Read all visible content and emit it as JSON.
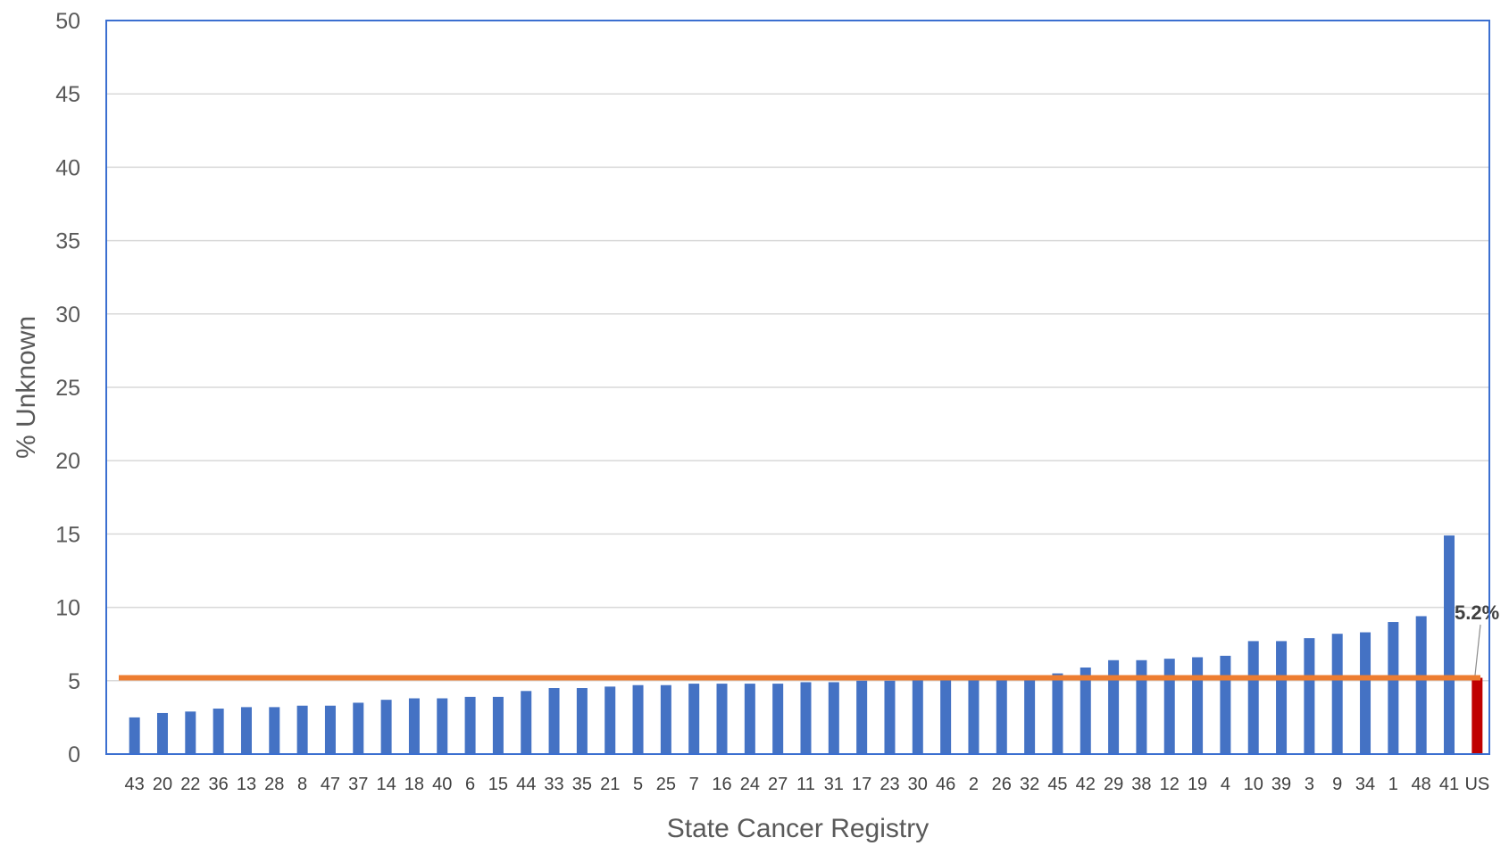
{
  "chart_data": {
    "type": "bar",
    "xlabel": "State Cancer Registry",
    "ylabel": "% Unknown",
    "ylim": [
      0,
      50
    ],
    "yticks": [
      0,
      5,
      10,
      15,
      20,
      25,
      30,
      35,
      40,
      45,
      50
    ],
    "grid": true,
    "categories": [
      "43",
      "20",
      "22",
      "36",
      "13",
      "28",
      "8",
      "47",
      "37",
      "14",
      "18",
      "40",
      "6",
      "15",
      "44",
      "33",
      "35",
      "21",
      "5",
      "25",
      "7",
      "16",
      "24",
      "27",
      "11",
      "31",
      "17",
      "23",
      "30",
      "46",
      "2",
      "26",
      "32",
      "45",
      "42",
      "29",
      "38",
      "12",
      "19",
      "4",
      "10",
      "39",
      "3",
      "9",
      "34",
      "1",
      "48",
      "41",
      "US"
    ],
    "values": [
      2.5,
      2.8,
      2.9,
      3.1,
      3.2,
      3.2,
      3.3,
      3.3,
      3.5,
      3.7,
      3.8,
      3.8,
      3.9,
      3.9,
      4.3,
      4.5,
      4.5,
      4.6,
      4.7,
      4.7,
      4.8,
      4.8,
      4.8,
      4.8,
      4.9,
      4.9,
      5.0,
      5.0,
      5.1,
      5.1,
      5.1,
      5.1,
      5.1,
      5.5,
      5.9,
      6.4,
      6.4,
      6.5,
      6.6,
      6.7,
      7.7,
      7.7,
      7.9,
      8.2,
      8.3,
      9.0,
      9.4,
      14.9,
      5.2
    ],
    "bar_color": "#4472C4",
    "highlight_category": "US",
    "highlight_color": "#C00000",
    "reference_line": {
      "value": 5.2,
      "color": "#ED7D31",
      "label": "5.2%"
    },
    "frame_color": "#3B6FD0",
    "grid_color": "#D9D9D9"
  }
}
